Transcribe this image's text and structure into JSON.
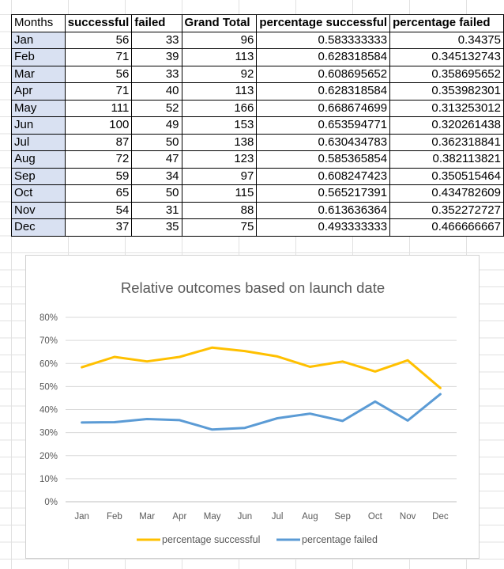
{
  "table": {
    "headers": [
      "Months",
      "successful",
      "failed",
      "Grand Total",
      "percentage successful",
      "percentage failed"
    ],
    "rows": [
      [
        "Jan",
        "56",
        "33",
        "96",
        "0.583333333",
        "0.34375"
      ],
      [
        "Feb",
        "71",
        "39",
        "113",
        "0.628318584",
        "0.345132743"
      ],
      [
        "Mar",
        "56",
        "33",
        "92",
        "0.608695652",
        "0.358695652"
      ],
      [
        "Apr",
        "71",
        "40",
        "113",
        "0.628318584",
        "0.353982301"
      ],
      [
        "May",
        "111",
        "52",
        "166",
        "0.668674699",
        "0.313253012"
      ],
      [
        "Jun",
        "100",
        "49",
        "153",
        "0.653594771",
        "0.320261438"
      ],
      [
        "Jul",
        "87",
        "50",
        "138",
        "0.630434783",
        "0.362318841"
      ],
      [
        "Aug",
        "72",
        "47",
        "123",
        "0.585365854",
        "0.382113821"
      ],
      [
        "Sep",
        "59",
        "34",
        "97",
        "0.608247423",
        "0.350515464"
      ],
      [
        "Oct",
        "65",
        "50",
        "115",
        "0.565217391",
        "0.434782609"
      ],
      [
        "Nov",
        "54",
        "31",
        "88",
        "0.613636364",
        "0.352272727"
      ],
      [
        "Dec",
        "37",
        "35",
        "75",
        "0.493333333",
        "0.466666667"
      ]
    ]
  },
  "chart_data": {
    "type": "line",
    "title": "Relative outcomes based on launch date",
    "categories": [
      "Jan",
      "Feb",
      "Mar",
      "Apr",
      "May",
      "Jun",
      "Jul",
      "Aug",
      "Sep",
      "Oct",
      "Nov",
      "Dec"
    ],
    "series": [
      {
        "name": "percentage successful",
        "color": "#ffc000",
        "values": [
          0.583333333,
          0.628318584,
          0.608695652,
          0.628318584,
          0.668674699,
          0.653594771,
          0.630434783,
          0.585365854,
          0.608247423,
          0.565217391,
          0.613636364,
          0.493333333
        ]
      },
      {
        "name": "percentage failed",
        "color": "#5b9bd5",
        "values": [
          0.34375,
          0.345132743,
          0.358695652,
          0.353982301,
          0.313253012,
          0.320261438,
          0.362318841,
          0.382113821,
          0.350515464,
          0.434782609,
          0.352272727,
          0.466666667
        ]
      }
    ],
    "ylim": [
      0,
      0.8
    ],
    "yticks": [
      "0%",
      "10%",
      "20%",
      "30%",
      "40%",
      "50%",
      "60%",
      "70%",
      "80%"
    ],
    "grid": true,
    "legend": "bottom"
  }
}
